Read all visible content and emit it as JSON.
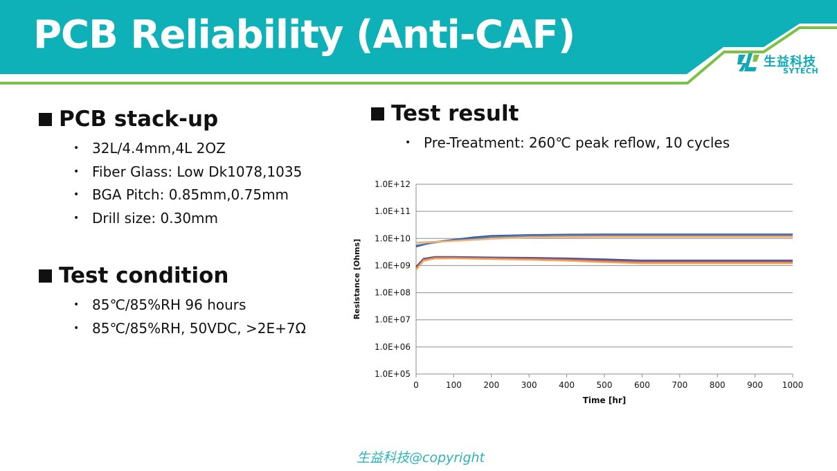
{
  "header": {
    "title": "PCB Reliability (Anti-CAF)",
    "band_color": "#0fb1b9",
    "accent_color": "#7bc143"
  },
  "logo": {
    "name_cn": "生益科技",
    "name_en": "SYTECH"
  },
  "stackup": {
    "heading": "PCB stack-up",
    "items": [
      "32L/4.4mm,4L 2OZ",
      "Fiber Glass: Low Dk1078,1035",
      "BGA Pitch: 0.85mm,0.75mm",
      "Drill size: 0.30mm"
    ]
  },
  "condition": {
    "heading": "Test condition",
    "items": [
      "85℃/85%RH 96 hours",
      "85℃/85%RH, 50VDC, >2E+7Ω"
    ]
  },
  "result": {
    "heading": "Test result",
    "items": [
      "Pre-Treatment: 260℃ peak reflow, 10 cycles"
    ]
  },
  "bullet_glyph": "•",
  "footer": {
    "copyright": "生益科技@copyright"
  },
  "chart_data": {
    "type": "line",
    "title": "",
    "xlabel": "Time [hr]",
    "ylabel": "Resistance [Ohms]",
    "xlim": [
      0,
      1000
    ],
    "ylim_log10": [
      5,
      12
    ],
    "y_scale": "log",
    "grid": "horizontal",
    "x_ticks": [
      "0",
      "100",
      "200",
      "300",
      "400",
      "500",
      "600",
      "700",
      "800",
      "900",
      "1000"
    ],
    "y_ticks": [
      "1.0E+05",
      "1.0E+06",
      "1.0E+07",
      "1.0E+08",
      "1.0E+09",
      "1.0E+10",
      "1.0E+11",
      "1.0E+12"
    ],
    "series": [
      {
        "color": "#3d4f8f",
        "x": [
          0,
          50,
          100,
          150,
          200,
          250,
          300,
          400,
          500,
          600,
          700,
          800,
          900,
          1000
        ],
        "y": [
          5000000000.0,
          7500000000.0,
          9000000000.0,
          11000000000.0,
          12500000000.0,
          13000000000.0,
          13500000000.0,
          14000000000.0,
          14200000000.0,
          14200000000.0,
          14200000000.0,
          14200000000.0,
          14200000000.0,
          14200000000.0
        ]
      },
      {
        "color": "#4a7ebb",
        "x": [
          0,
          50,
          100,
          150,
          200,
          250,
          300,
          400,
          500,
          600,
          700,
          800,
          900,
          1000
        ],
        "y": [
          5500000000.0,
          7000000000.0,
          8600000000.0,
          10000000000.0,
          11500000000.0,
          12200000000.0,
          12800000000.0,
          13200000000.0,
          13300000000.0,
          13300000000.0,
          13300000000.0,
          13300000000.0,
          13300000000.0,
          13300000000.0
        ]
      },
      {
        "color": "#e08a4a",
        "x": [
          0,
          50,
          100,
          150,
          200,
          250,
          300,
          400,
          500,
          600,
          700,
          800,
          900,
          1000
        ],
        "y": [
          7000000000.0,
          7600000000.0,
          8200000000.0,
          9000000000.0,
          10000000000.0,
          10800000000.0,
          11200000000.0,
          11800000000.0,
          12000000000.0,
          12000000000.0,
          12000000000.0,
          12000000000.0,
          12000000000.0,
          12000000000.0
        ]
      },
      {
        "color": "#f0b77e",
        "x": [
          0,
          50,
          100,
          150,
          200,
          250,
          300,
          400,
          500,
          600,
          700,
          800,
          900,
          1000
        ],
        "y": [
          6800000000.0,
          7400000000.0,
          8000000000.0,
          8800000000.0,
          9600000000.0,
          10300000000.0,
          10800000000.0,
          11200000000.0,
          11300000000.0,
          11300000000.0,
          11300000000.0,
          11300000000.0,
          11300000000.0,
          11300000000.0
        ]
      },
      {
        "color": "#3d4f8f",
        "x": [
          0,
          20,
          50,
          100,
          200,
          300,
          400,
          500,
          600,
          700,
          800,
          900,
          1000
        ],
        "y": [
          900000000.0,
          1800000000.0,
          2100000000.0,
          2100000000.0,
          2000000000.0,
          1950000000.0,
          1850000000.0,
          1700000000.0,
          1550000000.0,
          1550000000.0,
          1550000000.0,
          1550000000.0,
          1550000000.0
        ]
      },
      {
        "color": "#7a5aa6",
        "x": [
          0,
          20,
          50,
          100,
          200,
          300,
          400,
          500,
          600,
          700,
          800,
          900,
          1000
        ],
        "y": [
          800000000.0,
          1700000000.0,
          2000000000.0,
          2000000000.0,
          1920000000.0,
          1850000000.0,
          1720000000.0,
          1550000000.0,
          1450000000.0,
          1450000000.0,
          1450000000.0,
          1450000000.0,
          1450000000.0
        ]
      },
      {
        "color": "#e07a2e",
        "x": [
          0,
          20,
          50,
          100,
          200,
          300,
          400,
          500,
          600,
          700,
          800,
          900,
          1000
        ],
        "y": [
          750000000.0,
          1600000000.0,
          1900000000.0,
          1900000000.0,
          1800000000.0,
          1720000000.0,
          1600000000.0,
          1420000000.0,
          1300000000.0,
          1300000000.0,
          1300000000.0,
          1300000000.0,
          1300000000.0
        ]
      },
      {
        "color": "#f2a65a",
        "x": [
          0,
          20,
          50,
          100,
          200,
          300,
          400,
          500,
          600,
          700,
          800,
          900,
          1000
        ],
        "y": [
          700000000.0,
          1500000000.0,
          1800000000.0,
          1820000000.0,
          1720000000.0,
          1620000000.0,
          1500000000.0,
          1320000000.0,
          1200000000.0,
          1200000000.0,
          1200000000.0,
          1200000000.0,
          1200000000.0
        ]
      }
    ]
  }
}
